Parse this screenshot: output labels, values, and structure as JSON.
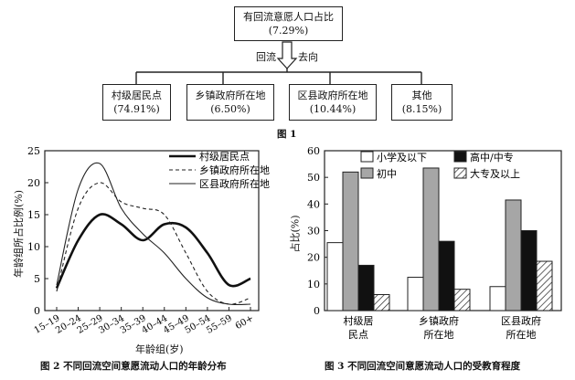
{
  "fig1": {
    "root": {
      "title": "有回流意愿人口占比",
      "value": "(7.29%)"
    },
    "arrow_left": "回流",
    "arrow_right": "去向",
    "children": [
      {
        "name": "村级居民点",
        "value": "(74.91%)"
      },
      {
        "name": "乡镇政府所在地",
        "value": "(6.50%)"
      },
      {
        "name": "区县政府所在地",
        "value": "(10.44%)"
      },
      {
        "name": "其他",
        "value": "(8.15%)"
      }
    ],
    "caption": "图 1"
  },
  "chart_data": [
    {
      "type": "line",
      "ylabel": "年龄组所占比例(%)",
      "xlabel": "年龄组(岁)",
      "categories": [
        "15–19",
        "20–24",
        "25–29",
        "30–34",
        "35–39",
        "40–44",
        "45–49",
        "50–54",
        "55–59",
        "60+"
      ],
      "ylim": [
        0,
        25
      ],
      "yticks": [
        "0",
        "5",
        "10",
        "15",
        "20",
        "25"
      ],
      "series": [
        {
          "name": "村级居民点",
          "style": "thick",
          "values": [
            3.5,
            11,
            15,
            13.5,
            11,
            13.5,
            13,
            9,
            4,
            5
          ]
        },
        {
          "name": "乡镇政府所在地",
          "style": "dashed",
          "values": [
            3,
            16,
            20,
            17,
            16,
            15,
            9,
            3,
            1,
            2
          ]
        },
        {
          "name": "区县政府所在地",
          "style": "thin",
          "values": [
            4,
            19,
            23,
            16,
            12,
            9,
            5,
            2,
            1,
            1
          ]
        }
      ],
      "caption": "图 2   不同回流空间意愿流动人口的年龄分布"
    },
    {
      "type": "bar",
      "ylabel": "占比(%)",
      "categories": [
        [
          "村级居",
          "民点"
        ],
        [
          "乡镇政府",
          "所在地"
        ],
        [
          "区县政府",
          "所在地"
        ]
      ],
      "ylim": [
        0,
        60
      ],
      "yticks": [
        "0",
        "10",
        "20",
        "30",
        "40",
        "50",
        "60"
      ],
      "series": [
        {
          "name": "小学及以下",
          "fill": "white",
          "values": [
            25.5,
            12.5,
            9
          ]
        },
        {
          "name": "初中",
          "fill": "gray",
          "values": [
            52,
            53.5,
            41.5
          ]
        },
        {
          "name": "高中/中专",
          "fill": "black",
          "values": [
            17,
            26,
            30
          ]
        },
        {
          "name": "大专及以上",
          "fill": "hatch",
          "values": [
            6,
            8,
            18.5
          ]
        }
      ],
      "caption": "图 3   不同回流空间意愿流动人口的受教育程度"
    }
  ]
}
